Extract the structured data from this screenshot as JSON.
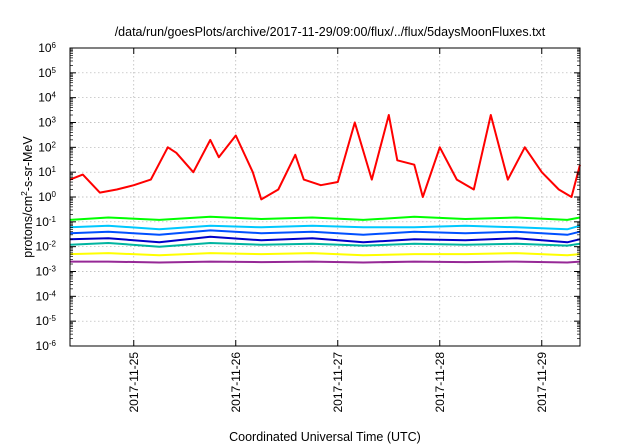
{
  "chart_data": {
    "type": "line",
    "title": "/data/run/goesPlots/archive/2017-11-29/09:00/flux/../flux/5daysMoonFluxes.txt",
    "xlabel": "Coordinated Universal Time (UTC)",
    "ylabel": {
      "pre": "protons/cm",
      "sup": "2",
      "post": "-s-sr-MeV"
    },
    "y_scale": "log",
    "ylim": [
      1e-06,
      1000000.0
    ],
    "y_ticks": [
      {
        "exp": -6,
        "base": "10",
        "sup": "-6"
      },
      {
        "exp": -5,
        "base": "10",
        "sup": "-5"
      },
      {
        "exp": -4,
        "base": "10",
        "sup": "-4"
      },
      {
        "exp": -3,
        "base": "10",
        "sup": "-3"
      },
      {
        "exp": -2,
        "base": "10",
        "sup": "-2"
      },
      {
        "exp": -1,
        "base": "10",
        "sup": "-1"
      },
      {
        "exp": 0,
        "base": "10",
        "sup": "0"
      },
      {
        "exp": 1,
        "base": "10",
        "sup": "1"
      },
      {
        "exp": 2,
        "base": "10",
        "sup": "2"
      },
      {
        "exp": 3,
        "base": "10",
        "sup": "3"
      },
      {
        "exp": 4,
        "base": "10",
        "sup": "4"
      },
      {
        "exp": 5,
        "base": "10",
        "sup": "5"
      },
      {
        "exp": 6,
        "base": "10",
        "sup": "6"
      }
    ],
    "x_range_days": [
      "2017-11-24T09:00",
      "2017-11-29T09:00"
    ],
    "x_ticks": [
      "2017-11-25",
      "2017-11-26",
      "2017-11-27",
      "2017-11-28",
      "2017-11-29"
    ],
    "grid": true,
    "series": [
      {
        "color": "#ff0000",
        "x": [
          "2017-11-24T09:00",
          "2017-11-24T12:00",
          "2017-11-24T16:00",
          "2017-11-24T20:00",
          "2017-11-25T00:00",
          "2017-11-25T04:00",
          "2017-11-25T08:00",
          "2017-11-25T10:00",
          "2017-11-25T14:00",
          "2017-11-25T18:00",
          "2017-11-25T20:00",
          "2017-11-26T00:00",
          "2017-11-26T04:00",
          "2017-11-26T06:00",
          "2017-11-26T10:00",
          "2017-11-26T14:00",
          "2017-11-26T16:00",
          "2017-11-26T20:00",
          "2017-11-27T00:00",
          "2017-11-27T04:00",
          "2017-11-27T08:00",
          "2017-11-27T12:00",
          "2017-11-27T14:00",
          "2017-11-27T18:00",
          "2017-11-27T20:00",
          "2017-11-28T00:00",
          "2017-11-28T04:00",
          "2017-11-28T08:00",
          "2017-11-28T12:00",
          "2017-11-28T16:00",
          "2017-11-28T20:00",
          "2017-11-29T00:00",
          "2017-11-29T04:00",
          "2017-11-29T07:00",
          "2017-11-29T09:00"
        ],
        "y": [
          5,
          8,
          1.5,
          2,
          3,
          5,
          100,
          60,
          10,
          200,
          40,
          300,
          10,
          0.8,
          2,
          50,
          5,
          3,
          4,
          1000,
          5,
          2000,
          30,
          20,
          1,
          100,
          5,
          2,
          2000,
          5,
          100,
          10,
          2,
          1,
          20
        ]
      },
      {
        "color": "#00ff00",
        "x": [
          "2017-11-24T09:00",
          "2017-11-24T18:00",
          "2017-11-25T06:00",
          "2017-11-25T18:00",
          "2017-11-26T06:00",
          "2017-11-26T18:00",
          "2017-11-27T06:00",
          "2017-11-27T18:00",
          "2017-11-28T06:00",
          "2017-11-28T18:00",
          "2017-11-29T06:00",
          "2017-11-29T09:00"
        ],
        "y": [
          0.12,
          0.15,
          0.12,
          0.16,
          0.13,
          0.15,
          0.12,
          0.16,
          0.13,
          0.15,
          0.12,
          0.15
        ]
      },
      {
        "color": "#00c8ff",
        "x": [
          "2017-11-24T09:00",
          "2017-11-24T18:00",
          "2017-11-25T06:00",
          "2017-11-25T18:00",
          "2017-11-26T06:00",
          "2017-11-26T18:00",
          "2017-11-27T06:00",
          "2017-11-27T18:00",
          "2017-11-28T06:00",
          "2017-11-28T18:00",
          "2017-11-29T06:00",
          "2017-11-29T09:00"
        ],
        "y": [
          0.06,
          0.07,
          0.05,
          0.07,
          0.06,
          0.07,
          0.06,
          0.06,
          0.07,
          0.06,
          0.05,
          0.07
        ]
      },
      {
        "color": "#0050ff",
        "x": [
          "2017-11-24T09:00",
          "2017-11-24T18:00",
          "2017-11-25T06:00",
          "2017-11-25T18:00",
          "2017-11-26T06:00",
          "2017-11-26T18:00",
          "2017-11-27T06:00",
          "2017-11-27T18:00",
          "2017-11-28T06:00",
          "2017-11-28T18:00",
          "2017-11-29T06:00",
          "2017-11-29T09:00"
        ],
        "y": [
          0.035,
          0.04,
          0.03,
          0.045,
          0.035,
          0.04,
          0.03,
          0.04,
          0.035,
          0.04,
          0.03,
          0.04
        ]
      },
      {
        "color": "#0000c8",
        "x": [
          "2017-11-24T09:00",
          "2017-11-24T18:00",
          "2017-11-25T06:00",
          "2017-11-25T18:00",
          "2017-11-26T06:00",
          "2017-11-26T18:00",
          "2017-11-27T06:00",
          "2017-11-27T18:00",
          "2017-11-28T06:00",
          "2017-11-28T18:00",
          "2017-11-29T06:00",
          "2017-11-29T09:00"
        ],
        "y": [
          0.02,
          0.022,
          0.015,
          0.025,
          0.018,
          0.022,
          0.015,
          0.02,
          0.018,
          0.022,
          0.015,
          0.02
        ]
      },
      {
        "color": "#00b4a0",
        "x": [
          "2017-11-24T09:00",
          "2017-11-24T18:00",
          "2017-11-25T06:00",
          "2017-11-25T18:00",
          "2017-11-26T06:00",
          "2017-11-26T18:00",
          "2017-11-27T06:00",
          "2017-11-27T18:00",
          "2017-11-28T06:00",
          "2017-11-28T18:00",
          "2017-11-29T06:00",
          "2017-11-29T09:00"
        ],
        "y": [
          0.012,
          0.014,
          0.01,
          0.014,
          0.012,
          0.013,
          0.011,
          0.013,
          0.012,
          0.013,
          0.011,
          0.013
        ]
      },
      {
        "color": "#ffff00",
        "x": [
          "2017-11-24T09:00",
          "2017-11-24T18:00",
          "2017-11-25T06:00",
          "2017-11-25T18:00",
          "2017-11-26T06:00",
          "2017-11-26T18:00",
          "2017-11-27T06:00",
          "2017-11-27T18:00",
          "2017-11-28T06:00",
          "2017-11-28T18:00",
          "2017-11-29T06:00",
          "2017-11-29T09:00"
        ],
        "y": [
          0.005,
          0.0055,
          0.0045,
          0.0055,
          0.005,
          0.0055,
          0.0045,
          0.005,
          0.005,
          0.0055,
          0.0045,
          0.005
        ]
      },
      {
        "color": "#962896",
        "x": [
          "2017-11-24T09:00",
          "2017-11-24T18:00",
          "2017-11-25T06:00",
          "2017-11-25T18:00",
          "2017-11-26T06:00",
          "2017-11-26T18:00",
          "2017-11-27T06:00",
          "2017-11-27T18:00",
          "2017-11-28T06:00",
          "2017-11-28T18:00",
          "2017-11-29T06:00",
          "2017-11-29T09:00"
        ],
        "y": [
          0.0025,
          0.0025,
          0.0023,
          0.0025,
          0.0024,
          0.0025,
          0.0023,
          0.0025,
          0.0024,
          0.0025,
          0.0023,
          0.0025
        ]
      }
    ]
  }
}
